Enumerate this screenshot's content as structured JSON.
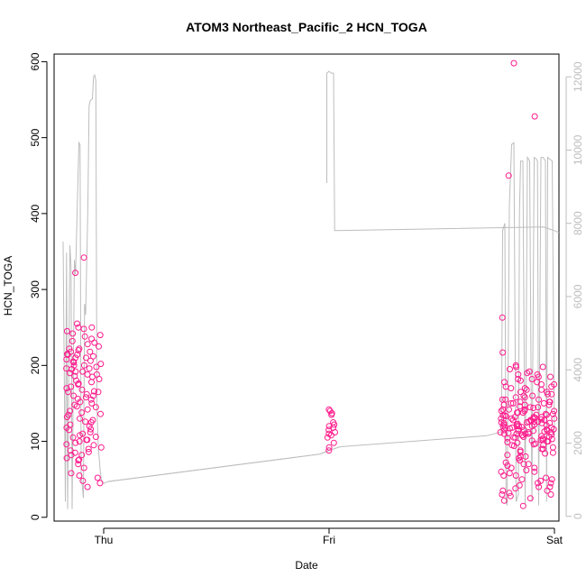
{
  "chart_data": {
    "type": "scatter",
    "title": "ATOM3 Northeast_Pacific_2 HCN_TOGA",
    "xlabel": "Date",
    "ylabel": "HCN_TOGA",
    "x_ticks": [
      {
        "label": "Thu",
        "value": 0
      },
      {
        "label": "Fri",
        "value": 1
      },
      {
        "label": "Sat",
        "value": 2
      }
    ],
    "xlim": [
      -0.22,
      2.02
    ],
    "ylim": [
      -5,
      610
    ],
    "y_ticks": [
      0,
      100,
      200,
      300,
      400,
      500,
      600
    ],
    "y2lim": [
      -130,
      12620
    ],
    "y2_ticks": [
      0,
      2000,
      4000,
      6000,
      8000,
      10000,
      12000
    ],
    "grid": false,
    "colors": {
      "points": "#ff1a8c",
      "altitude_line": "#bdbdbd",
      "right_axis": "#bdbdbd",
      "axes": "#000000"
    },
    "series": [
      {
        "role": "points",
        "axis": "left",
        "clusters": [
          {
            "x0": -0.17,
            "x1": -0.01,
            "seed": 11,
            "count": 110,
            "y": [
              200,
              210,
              175,
              165,
              155,
              145,
              135,
              125,
              115,
              105,
              95,
              85,
              75,
              70,
              65,
              90,
              100,
              110,
              120,
              130,
              140,
              150,
              160,
              170,
              180,
              190,
              210,
              215,
              220,
              225,
              230,
              235,
              240,
              245,
              250,
              212,
              208,
              205,
              198,
              195,
              192,
              188,
              185,
              182,
              178,
              172,
              168,
              162,
              158,
              152,
              148,
              142,
              138,
              132,
              128,
              122,
              118,
              112,
              108,
              102,
              98,
              92,
              88,
              82,
              78,
              342,
              322,
              255,
              250,
              248,
              242,
              238,
              232,
              228,
              222,
              218,
              214,
              206,
              202,
              196,
              186,
              176,
              166,
              156,
              146,
              136,
              126,
              116,
              106,
              96,
              86,
              76,
              58,
              55,
              52,
              48,
              45,
              40,
              165,
              160,
              102,
              82,
              222,
              218,
              214,
              204,
              200,
              196,
              192,
              188
            ]
          },
          {
            "x0": 0.99,
            "x1": 1.03,
            "seed": 23,
            "count": 16,
            "y": [
              142,
              140,
              137,
              135,
              125,
              122,
              120,
              118,
              115,
              112,
              110,
              108,
              105,
              98,
              92,
              88
            ]
          },
          {
            "x0": 1.76,
            "x1": 2.0,
            "seed": 37,
            "count": 190,
            "y": [
              598,
              528,
              450,
              263,
              217,
              200,
              198,
              192,
              188,
              185,
              182,
              178,
              175,
              172,
              170,
              168,
              165,
              162,
              160,
              158,
              155,
              152,
              150,
              148,
              146,
              144,
              142,
              140,
              138,
              136,
              134,
              132,
              130,
              128,
              126,
              124,
              122,
              120,
              118,
              116,
              114,
              112,
              110,
              108,
              106,
              104,
              102,
              100,
              98,
              96,
              94,
              92,
              90,
              88,
              86,
              84,
              82,
              80,
              78,
              75,
              72,
              70,
              68,
              65,
              62,
              60,
              58,
              55,
              52,
              50,
              48,
              45,
              42,
              40,
              38,
              35,
              32,
              30,
              28,
              25,
              22,
              15,
              148,
              145,
              142,
              140,
              138,
              135,
              132,
              130,
              128,
              126,
              124,
              122,
              120,
              118,
              116,
              114,
              112,
              110,
              108,
              106,
              104,
              102,
              100,
              150,
              152,
              155,
              158,
              160,
              162,
              165,
              168,
              170,
              172,
              175,
              178,
              180,
              182,
              185,
              188,
              190,
              195,
              198,
              135,
              130,
              125,
              120,
              115,
              110,
              105,
              95,
              90,
              85,
              80,
              70,
              65,
              60,
              55,
              50,
              45,
              40,
              35,
              30,
              128,
              126,
              124,
              122,
              120,
              118,
              116,
              114,
              112,
              110,
              140,
              138,
              136,
              134,
              132,
              130,
              142,
              145,
              148,
              150,
              152,
              155,
              133,
              131,
              129,
              127,
              125,
              123,
              121,
              119,
              117,
              115,
              113,
              111,
              109,
              107,
              105,
              103,
              101,
              99,
              97,
              95
            ]
          }
        ]
      },
      {
        "role": "altitude_line",
        "axis": "right",
        "segments": [
          {
            "x": [
              -0.18,
              -0.17,
              -0.165,
              -0.16,
              -0.15,
              -0.145,
              -0.14,
              -0.13,
              -0.125,
              -0.11,
              -0.105,
              -0.1,
              -0.09,
              -0.085,
              -0.08,
              -0.07,
              -0.065,
              -0.06,
              -0.05,
              -0.045,
              -0.04,
              -0.035,
              -0.03,
              -0.025,
              -0.02,
              -0.015,
              -0.01,
              -0.005,
              0.0,
              0.02,
              0.96,
              1.0
            ],
            "y": [
              7500,
              400,
              7200,
              200,
              7400,
              6800,
              200,
              7000,
              6600,
              10200,
              10150,
              1200,
              500,
              5800,
              5500,
              8500,
              11200,
              11350,
              11400,
              12000,
              12050,
              11900,
              3000,
              2000,
              1600,
              1200,
              1000,
              950,
              900,
              950,
              1700,
              1800
            ]
          },
          {
            "x": [
              0.99,
              0.99,
              1.0,
              1.01,
              1.02,
              1.025,
              1.95,
              2.0,
              2.02
            ],
            "y": [
              9100,
              12100,
              12150,
              12100,
              12100,
              7800,
              7900,
              7800,
              7750
            ]
          },
          {
            "x": [
              0.02,
              0.96,
              1.0,
              1.05,
              1.7,
              1.76,
              1.765,
              1.77,
              1.78,
              1.785,
              1.79,
              1.8,
              1.81,
              1.82,
              1.83,
              1.84,
              1.845,
              1.85,
              1.86,
              1.87,
              1.88,
              1.885,
              1.89,
              1.9,
              1.91,
              1.92,
              1.925,
              1.93,
              1.94,
              1.95,
              1.96,
              1.965,
              1.97,
              1.98,
              1.99,
              2.0
            ],
            "y": [
              950,
              1700,
              1800,
              1900,
              2200,
              2300,
              2500,
              7800,
              8000,
              400,
              300,
              8500,
              10150,
              10200,
              400,
              600,
              8300,
              9700,
              9700,
              300,
              9800,
              9750,
              9700,
              400,
              9800,
              9750,
              9700,
              300,
              9800,
              9800,
              9700,
              400,
              9800,
              9750,
              9700,
              2200
            ]
          }
        ]
      }
    ]
  }
}
